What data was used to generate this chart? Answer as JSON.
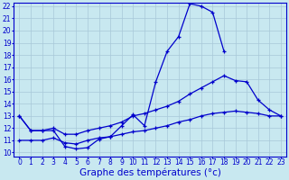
{
  "xlabel": "Graphe des températures (°c)",
  "bg_color": "#c8e8f0",
  "line_color": "#0000cc",
  "ylim": [
    10,
    22
  ],
  "xlim": [
    0,
    23
  ],
  "yticks": [
    10,
    11,
    12,
    13,
    14,
    15,
    16,
    17,
    18,
    19,
    20,
    21,
    22
  ],
  "xticks": [
    0,
    1,
    2,
    3,
    4,
    5,
    6,
    7,
    8,
    9,
    10,
    11,
    12,
    13,
    14,
    15,
    16,
    17,
    18,
    19,
    20,
    21,
    22,
    23
  ],
  "line1_x": [
    0,
    1,
    2,
    3,
    4,
    5,
    6,
    7,
    8,
    9,
    10,
    11,
    12,
    13,
    14,
    15,
    16,
    17,
    18
  ],
  "line1_y": [
    13,
    11.8,
    11.8,
    11.8,
    10.5,
    10.3,
    10.4,
    11.1,
    11.3,
    12.2,
    13.1,
    12.2,
    15.8,
    18.3,
    19.5,
    22.2,
    22.0,
    21.5,
    18.3
  ],
  "line2_x": [
    0,
    1,
    2,
    3,
    4,
    5,
    6,
    7,
    8,
    9,
    10,
    11,
    12,
    13,
    14,
    15,
    16,
    17,
    18,
    19,
    20,
    21,
    22,
    23
  ],
  "line2_y": [
    13.0,
    11.8,
    11.8,
    12.0,
    11.5,
    11.5,
    11.8,
    12.0,
    12.2,
    12.5,
    13.0,
    13.2,
    13.5,
    13.8,
    14.2,
    14.8,
    15.3,
    15.8,
    16.3,
    15.9,
    15.8,
    14.3,
    13.5,
    13.0
  ],
  "line3_x": [
    0,
    1,
    2,
    3,
    4,
    5,
    6,
    7,
    8,
    9,
    10,
    11,
    12,
    13,
    14,
    15,
    16,
    17,
    18,
    19,
    20,
    21,
    22,
    23
  ],
  "line3_y": [
    11.0,
    11.0,
    11.0,
    11.2,
    10.8,
    10.7,
    11.0,
    11.2,
    11.3,
    11.5,
    11.7,
    11.8,
    12.0,
    12.2,
    12.5,
    12.7,
    13.0,
    13.2,
    13.3,
    13.4,
    13.3,
    13.2,
    13.0,
    13.0
  ],
  "grid_color": "#a8c8d8",
  "tick_fontsize": 5.5,
  "label_fontsize": 7.5
}
